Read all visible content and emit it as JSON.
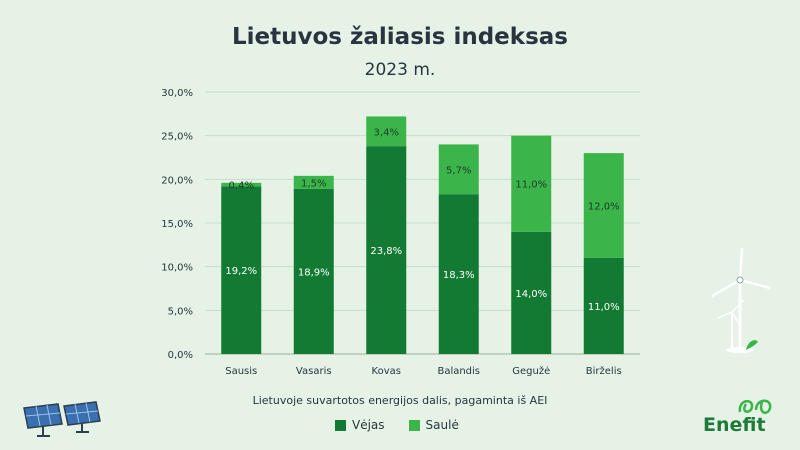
{
  "title": "Lietuvos žaliasis indeksas",
  "subtitle": "2023 m.",
  "caption": "Lietuvoje suvartotos energijos dalis, pagaminta iš AEI",
  "logo_text": "Enefit",
  "colors": {
    "vejas": "#127a33",
    "saule": "#3bb54a",
    "axis_text": "#2a3440",
    "grid": "#c9dcc9"
  },
  "chart_data": {
    "type": "bar",
    "stacked": true,
    "categories": [
      "Sausis",
      "Vasaris",
      "Kovas",
      "Balandis",
      "Gegužė",
      "Birželis"
    ],
    "series": [
      {
        "name": "Vėjas",
        "values": [
          19.2,
          18.9,
          23.8,
          18.3,
          14.0,
          11.0
        ],
        "labels": [
          "19,2%",
          "18,9%",
          "23,8%",
          "18,3%",
          "14,0%",
          "11,0%"
        ]
      },
      {
        "name": "Saulė",
        "values": [
          0.4,
          1.5,
          3.4,
          5.7,
          11.0,
          12.0
        ],
        "labels": [
          "0,4%",
          "1,5%",
          "3,4%",
          "5,7%",
          "11,0%",
          "12,0%"
        ]
      }
    ],
    "ylim": [
      0,
      30
    ],
    "yticks": [
      0,
      5,
      10,
      15,
      20,
      25,
      30
    ],
    "ytick_labels": [
      "0,0%",
      "5,0%",
      "10,0%",
      "15,0%",
      "20,0%",
      "25,0%",
      "30,0%"
    ],
    "grid": true,
    "legend": "bottom"
  }
}
